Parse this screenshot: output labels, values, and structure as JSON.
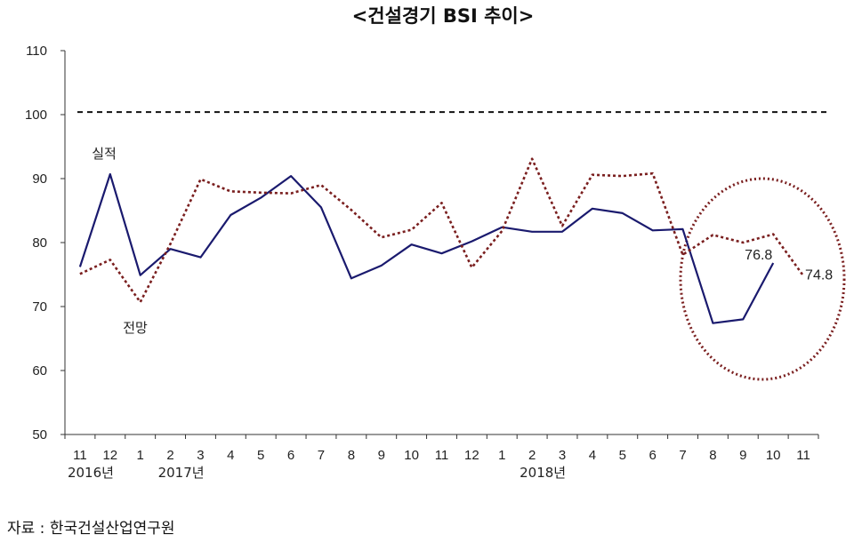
{
  "chart_data": {
    "type": "line",
    "title": "<건설경기 BSI 추이>",
    "categories": [
      "11",
      "12",
      "1",
      "2",
      "3",
      "4",
      "5",
      "6",
      "7",
      "8",
      "9",
      "10",
      "11",
      "12",
      "1",
      "2",
      "3",
      "4",
      "5",
      "6",
      "7",
      "8",
      "9",
      "10",
      "11"
    ],
    "year_labels": [
      {
        "index": 0,
        "text": "2016년"
      },
      {
        "index": 3,
        "text": "2017년"
      },
      {
        "index": 15,
        "text": "2018년"
      }
    ],
    "series": [
      {
        "name": "실적",
        "style": "solid",
        "color": "#1a1a6e",
        "values": [
          76.2,
          90.7,
          74.9,
          79.0,
          77.7,
          84.3,
          87.0,
          90.4,
          85.5,
          74.4,
          76.4,
          79.7,
          78.3,
          80.2,
          82.4,
          81.7,
          81.7,
          85.3,
          84.6,
          81.9,
          82.1,
          67.4,
          68.0,
          76.8,
          null
        ]
      },
      {
        "name": "전망",
        "style": "dotted",
        "color": "#7a1f1f",
        "values": [
          75.1,
          77.3,
          70.7,
          79.8,
          89.9,
          88.0,
          87.8,
          87.7,
          89.0,
          85.1,
          80.8,
          82.0,
          86.2,
          76.1,
          81.8,
          93.1,
          82.6,
          90.6,
          90.4,
          90.8,
          78.1,
          81.2,
          80.0,
          81.3,
          74.8
        ]
      }
    ],
    "ylim": [
      50,
      110
    ],
    "yticks": [
      50,
      60,
      70,
      80,
      90,
      100,
      110
    ],
    "reference_line": {
      "value": 100.4,
      "style": "dashed",
      "color": "#111111"
    },
    "data_labels": [
      {
        "series": 0,
        "index": 23,
        "text": "76.8"
      },
      {
        "series": 1,
        "index": 24,
        "text": "74.8"
      }
    ],
    "highlight_ellipse": {
      "color": "#7a1f1f",
      "style": "dotted"
    },
    "grid": false,
    "legend": "inline-labels"
  },
  "source": "자료 : 한국건설산업연구원"
}
